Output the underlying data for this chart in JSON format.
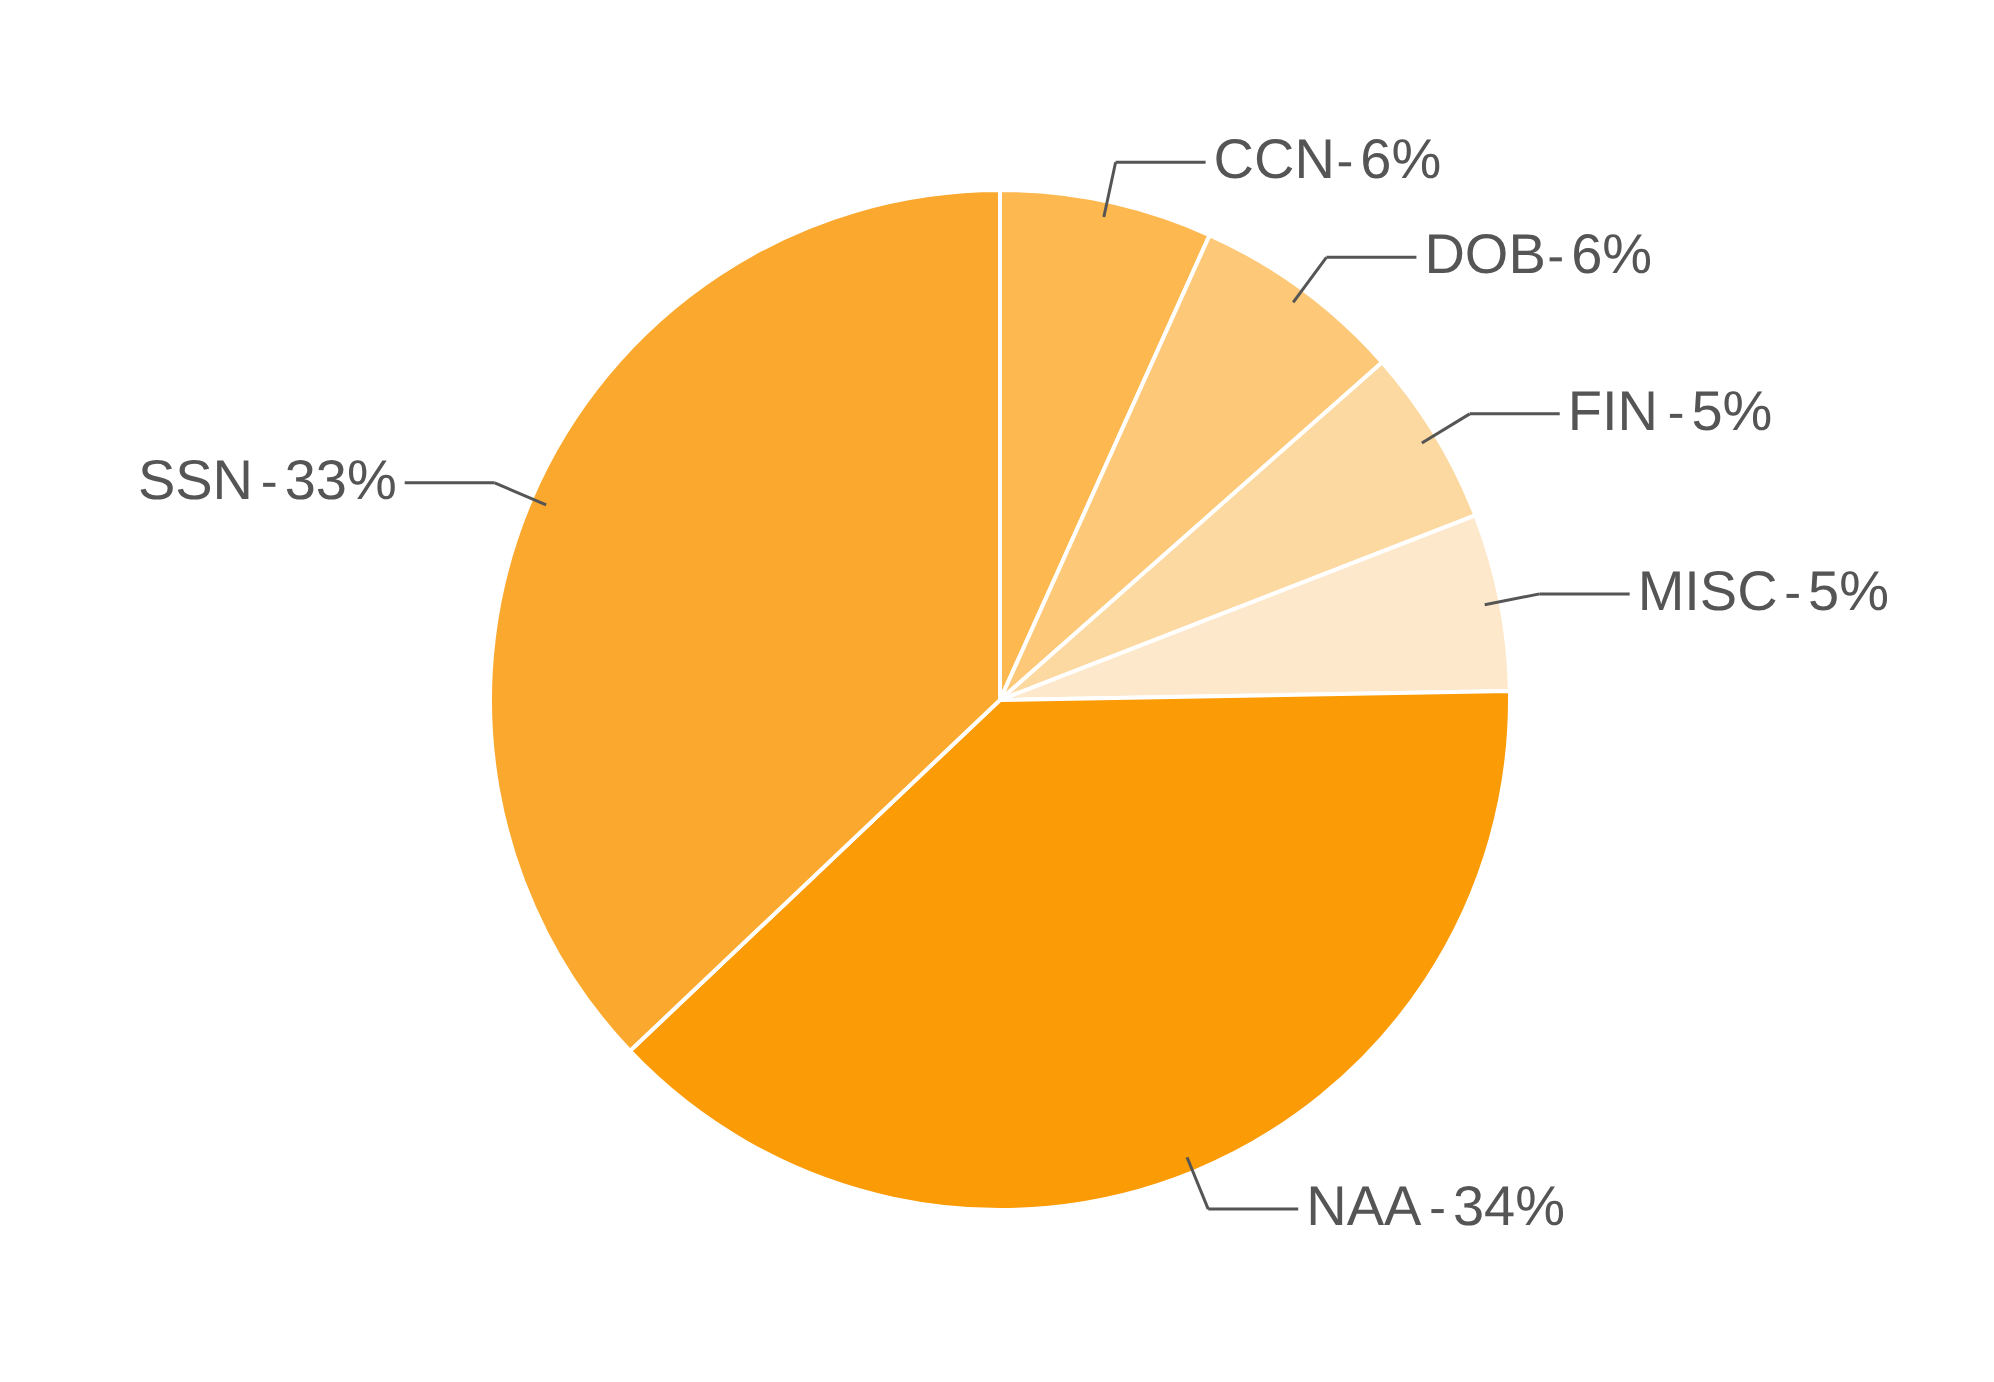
{
  "chart_data": {
    "type": "pie",
    "categories": [
      "CCN",
      "DOB",
      "FIN",
      "MISC",
      "NAA",
      "SSN"
    ],
    "values": [
      6,
      6,
      5,
      5,
      34,
      33
    ],
    "value_labels": [
      "6%",
      "6%",
      "5%",
      "5%",
      "34%",
      "33%"
    ],
    "colors": [
      "#fdb84f",
      "#fdc878",
      "#fdd9a2",
      "#fde8cb",
      "#fb9b06",
      "#fba82e"
    ]
  }
}
